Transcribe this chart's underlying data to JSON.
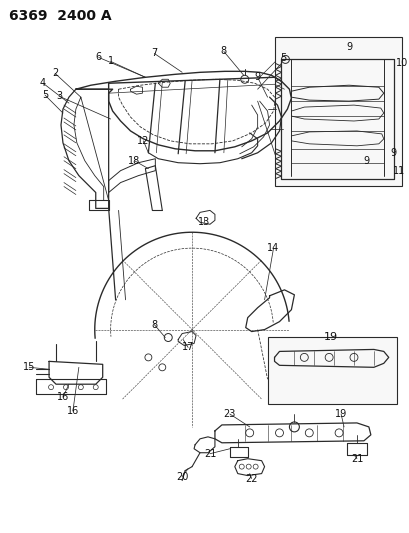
{
  "header": "6369  2400 A",
  "background_color": "#ffffff",
  "title_fontsize": 10,
  "title_fontweight": "bold",
  "figsize": [
    4.1,
    5.33
  ],
  "dpi": 100,
  "line_color": "#2a2a2a",
  "text_color": "#111111",
  "label_fontsize": 7.0
}
